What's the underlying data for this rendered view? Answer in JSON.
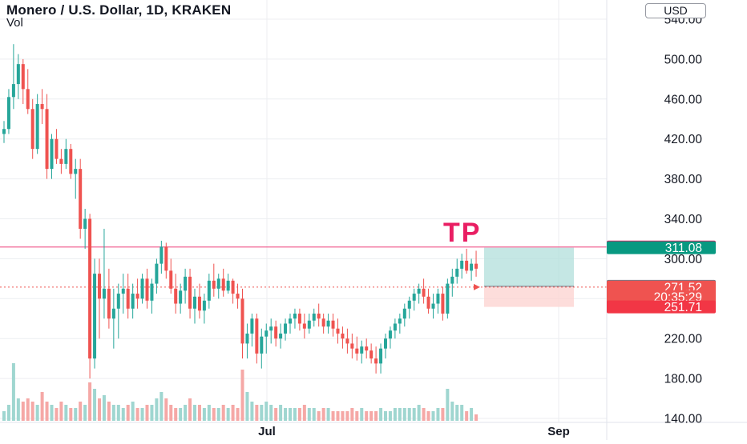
{
  "header": {
    "title": "Monero / U.S. Dollar, 1D, KRAKEN",
    "indicator": "Vol",
    "currency_button": "USD"
  },
  "annotation": {
    "text": "TP",
    "color": "#e91e63"
  },
  "colors": {
    "up": "#26a69a",
    "down": "#ef5350",
    "up_volume": "#9fd6d0",
    "down_volume": "#f5a8a6",
    "tp_line": "#f06292",
    "profit_zone": "#b2dfdb",
    "loss_zone": "#fcd4d2",
    "grid": "#eceef1",
    "axis_text": "#131722"
  },
  "chart_data": {
    "type": "candlestick",
    "title": "Monero / U.S. Dollar, 1D, KRAKEN",
    "y_axis": {
      "ticks": [
        140,
        180,
        220,
        260,
        300,
        340,
        380,
        420,
        460,
        500,
        540
      ],
      "tick_labels": [
        "140.00",
        "180.00",
        "220.00",
        "",
        "300.00",
        "340.00",
        "380.00",
        "420.00",
        "460.00",
        "500.00",
        "540.00"
      ],
      "range": [
        132,
        551
      ]
    },
    "x_axis": {
      "tick_labels": [
        "Jul",
        "Sep"
      ]
    },
    "candles": [
      [
        425,
        438,
        416,
        430
      ],
      [
        430,
        470,
        425,
        462
      ],
      [
        462,
        515,
        450,
        475
      ],
      [
        475,
        505,
        460,
        495
      ],
      [
        495,
        500,
        455,
        470
      ],
      [
        470,
        490,
        445,
        450
      ],
      [
        450,
        460,
        400,
        410
      ],
      [
        410,
        465,
        405,
        455
      ],
      [
        455,
        470,
        435,
        450
      ],
      [
        450,
        465,
        380,
        390
      ],
      [
        390,
        425,
        380,
        420
      ],
      [
        420,
        430,
        395,
        400
      ],
      [
        400,
        410,
        385,
        395
      ],
      [
        395,
        420,
        390,
        410
      ],
      [
        410,
        415,
        380,
        385
      ],
      [
        385,
        400,
        360,
        390
      ],
      [
        390,
        400,
        320,
        330
      ],
      [
        330,
        350,
        310,
        340
      ],
      [
        340,
        345,
        180,
        200
      ],
      [
        200,
        300,
        190,
        285
      ],
      [
        285,
        300,
        220,
        260
      ],
      [
        260,
        330,
        240,
        270
      ],
      [
        270,
        290,
        230,
        240
      ],
      [
        240,
        270,
        210,
        250
      ],
      [
        250,
        275,
        220,
        265
      ],
      [
        265,
        285,
        245,
        270
      ],
      [
        270,
        285,
        240,
        250
      ],
      [
        250,
        275,
        240,
        265
      ],
      [
        265,
        280,
        250,
        260
      ],
      [
        260,
        285,
        255,
        280
      ],
      [
        280,
        290,
        250,
        258
      ],
      [
        258,
        280,
        245,
        275
      ],
      [
        275,
        300,
        265,
        295
      ],
      [
        295,
        318,
        285,
        312
      ],
      [
        312,
        316,
        280,
        288
      ],
      [
        288,
        300,
        265,
        270
      ],
      [
        270,
        285,
        245,
        255
      ],
      [
        255,
        275,
        245,
        268
      ],
      [
        268,
        290,
        255,
        282
      ],
      [
        282,
        290,
        240,
        250
      ],
      [
        250,
        270,
        235,
        262
      ],
      [
        262,
        275,
        240,
        248
      ],
      [
        248,
        265,
        235,
        258
      ],
      [
        258,
        285,
        250,
        278
      ],
      [
        278,
        295,
        262,
        270
      ],
      [
        270,
        285,
        260,
        280
      ],
      [
        280,
        290,
        262,
        268
      ],
      [
        268,
        285,
        265,
        278
      ],
      [
        278,
        280,
        255,
        265
      ],
      [
        265,
        275,
        250,
        260
      ],
      [
        260,
        270,
        200,
        215
      ],
      [
        215,
        235,
        200,
        225
      ],
      [
        225,
        245,
        212,
        240
      ],
      [
        240,
        245,
        195,
        205
      ],
      [
        205,
        230,
        190,
        222
      ],
      [
        222,
        235,
        205,
        228
      ],
      [
        228,
        240,
        215,
        232
      ],
      [
        232,
        238,
        212,
        220
      ],
      [
        220,
        235,
        210,
        225
      ],
      [
        225,
        240,
        218,
        235
      ],
      [
        235,
        245,
        225,
        240
      ],
      [
        240,
        250,
        230,
        245
      ],
      [
        245,
        250,
        228,
        235
      ],
      [
        235,
        245,
        220,
        230
      ],
      [
        230,
        245,
        225,
        238
      ],
      [
        238,
        250,
        232,
        245
      ],
      [
        245,
        255,
        232,
        240
      ],
      [
        240,
        245,
        225,
        232
      ],
      [
        232,
        245,
        225,
        238
      ],
      [
        238,
        245,
        222,
        230
      ],
      [
        230,
        240,
        215,
        225
      ],
      [
        225,
        232,
        210,
        220
      ],
      [
        220,
        230,
        205,
        215
      ],
      [
        215,
        225,
        200,
        210
      ],
      [
        210,
        222,
        198,
        205
      ],
      [
        205,
        218,
        195,
        212
      ],
      [
        212,
        220,
        200,
        208
      ],
      [
        208,
        215,
        195,
        200
      ],
      [
        200,
        212,
        185,
        195
      ],
      [
        195,
        215,
        185,
        210
      ],
      [
        210,
        225,
        200,
        220
      ],
      [
        220,
        232,
        210,
        228
      ],
      [
        228,
        240,
        220,
        235
      ],
      [
        235,
        245,
        225,
        240
      ],
      [
        240,
        255,
        232,
        250
      ],
      [
        250,
        262,
        240,
        258
      ],
      [
        258,
        270,
        248,
        265
      ],
      [
        265,
        275,
        255,
        270
      ],
      [
        270,
        280,
        255,
        262
      ],
      [
        262,
        270,
        245,
        250
      ],
      [
        250,
        265,
        240,
        255
      ],
      [
        255,
        270,
        245,
        265
      ],
      [
        265,
        272,
        238,
        245
      ],
      [
        245,
        280,
        240,
        275
      ],
      [
        275,
        290,
        262,
        282
      ],
      [
        282,
        300,
        275,
        290
      ],
      [
        290,
        305,
        280,
        298
      ],
      [
        298,
        310,
        285,
        288
      ],
      [
        288,
        300,
        278,
        295
      ],
      [
        295,
        308,
        282,
        290
      ]
    ],
    "volumes": [
      3,
      5,
      18,
      7,
      6,
      7,
      6,
      5,
      9,
      6,
      5,
      4,
      6,
      5,
      4,
      4,
      6,
      5,
      12,
      10,
      7,
      8,
      6,
      5,
      5,
      4,
      5,
      6,
      4,
      4,
      5,
      5,
      7,
      9,
      7,
      5,
      4,
      4,
      5,
      7,
      5,
      5,
      4,
      5,
      4,
      4,
      5,
      4,
      5,
      4,
      16,
      9,
      6,
      5,
      5,
      6,
      5,
      4,
      5,
      4,
      4,
      4,
      4,
      5,
      4,
      4,
      3,
      4,
      4,
      3,
      3,
      3,
      3,
      4,
      3,
      4,
      3,
      3,
      3,
      4,
      3,
      3,
      4,
      4,
      4,
      4,
      4,
      5,
      4,
      3,
      3,
      4,
      4,
      10,
      6,
      5,
      5,
      3,
      4,
      2
    ],
    "levels": [
      {
        "label": "311.75",
        "price": 311.75,
        "color": "#e91e63"
      },
      {
        "label": "311.08",
        "price": 311.08,
        "color": "#089981"
      },
      {
        "label": "272.39",
        "price": 272.39,
        "color": "#787b86"
      },
      {
        "label": "271.52",
        "price": 271.52,
        "color": "#ef5350"
      },
      {
        "label": "20:35:29",
        "price": 262.0,
        "color": "#ef5350"
      },
      {
        "label": "251.71",
        "price": 251.71,
        "color": "#f23645"
      }
    ],
    "position": {
      "target": 311.08,
      "entry": 272.39,
      "stop": 251.71
    },
    "grid": true
  }
}
